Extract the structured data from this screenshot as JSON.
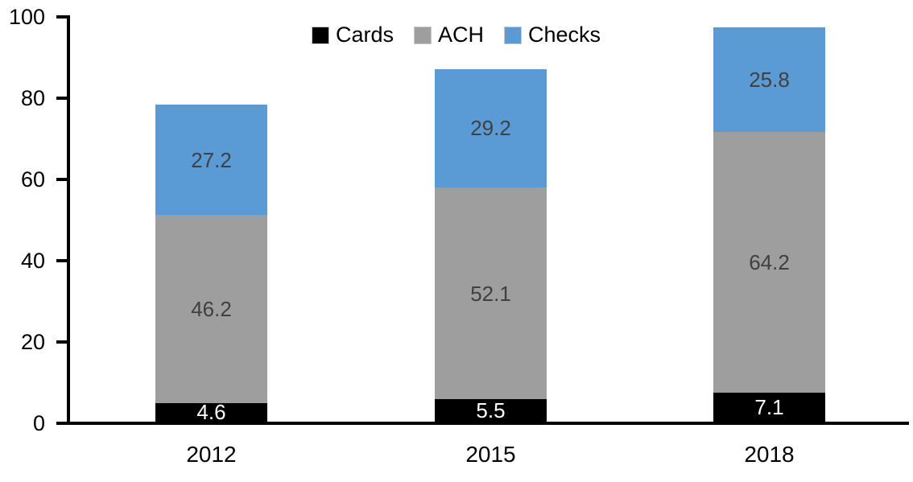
{
  "chart_data": {
    "type": "bar",
    "stacked": true,
    "title": "",
    "categories": [
      "2012",
      "2015",
      "2018"
    ],
    "series": [
      {
        "name": "Cards",
        "color": "#000000",
        "label_color": "#ffffff",
        "values": [
          4.6,
          5.5,
          7.1
        ]
      },
      {
        "name": "ACH",
        "color": "#9e9e9e",
        "label_color": "#404040",
        "values": [
          46.2,
          52.1,
          64.2
        ]
      },
      {
        "name": "Checks",
        "color": "#5b9bd5",
        "label_color": "#404040",
        "values": [
          27.2,
          29.2,
          25.8
        ]
      }
    ],
    "ylim": [
      0,
      100
    ],
    "yticks": [
      0,
      20,
      40,
      60,
      80,
      100
    ],
    "grid": false,
    "legend_position": "top-center",
    "axis_color": "#000000",
    "value_decimals": 1
  }
}
